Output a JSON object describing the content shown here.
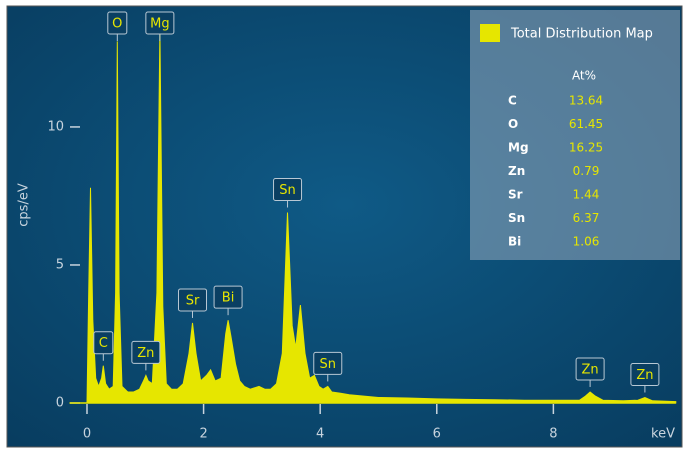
{
  "chart_data": {
    "type": "area",
    "x_label": "keV",
    "y_label": "cps/eV",
    "color": "#e6e600",
    "xlim": [
      -0.3,
      10.1
    ],
    "ylim": [
      0,
      14.2
    ],
    "xticks": [
      0,
      2,
      4,
      6,
      8
    ],
    "yticks": [
      0,
      5,
      10
    ],
    "x": [
      0.0,
      0.03,
      0.06,
      0.1,
      0.15,
      0.2,
      0.25,
      0.28,
      0.32,
      0.38,
      0.45,
      0.49,
      0.52,
      0.55,
      0.6,
      0.7,
      0.8,
      0.9,
      0.97,
      1.01,
      1.05,
      1.12,
      1.2,
      1.25,
      1.3,
      1.36,
      1.45,
      1.55,
      1.65,
      1.75,
      1.81,
      1.87,
      1.95,
      2.05,
      2.12,
      2.2,
      2.3,
      2.38,
      2.42,
      2.47,
      2.55,
      2.62,
      2.7,
      2.8,
      2.95,
      3.05,
      3.15,
      3.25,
      3.35,
      3.44,
      3.52,
      3.58,
      3.66,
      3.74,
      3.82,
      3.9,
      3.98,
      4.05,
      4.13,
      4.2,
      4.35,
      4.5,
      5,
      5.5,
      6,
      6.5,
      7,
      7.5,
      8,
      8.45,
      8.55,
      8.63,
      8.72,
      8.85,
      9.2,
      9.45,
      9.57,
      9.7,
      10.1
    ],
    "values": [
      0,
      4,
      7.8,
      3,
      0.9,
      0.6,
      0.9,
      1.35,
      0.7,
      0.5,
      0.6,
      4,
      13.1,
      4,
      0.6,
      0.4,
      0.4,
      0.5,
      0.8,
      1.0,
      0.8,
      0.7,
      4,
      13.5,
      3.5,
      0.7,
      0.5,
      0.5,
      0.7,
      1.8,
      2.9,
      1.8,
      0.8,
      1.0,
      1.2,
      0.8,
      0.9,
      2.5,
      3.0,
      2.4,
      1.4,
      0.8,
      0.6,
      0.5,
      0.6,
      0.5,
      0.5,
      0.7,
      1.8,
      6.9,
      2.8,
      2.0,
      3.55,
      1.8,
      0.9,
      1.0,
      0.6,
      0.5,
      0.6,
      0.4,
      0.35,
      0.3,
      0.2,
      0.18,
      0.15,
      0.13,
      0.12,
      0.1,
      0.1,
      0.1,
      0.25,
      0.4,
      0.25,
      0.1,
      0.08,
      0.1,
      0.2,
      0.08,
      0.05
    ],
    "annotations": [
      {
        "label": "C",
        "x": 0.28
      },
      {
        "label": "O",
        "x": 0.52
      },
      {
        "label": "Zn",
        "x": 1.01
      },
      {
        "label": "Mg",
        "x": 1.25
      },
      {
        "label": "Sr",
        "x": 1.81
      },
      {
        "label": "Bi",
        "x": 2.42
      },
      {
        "label": "Sn",
        "x": 3.44
      },
      {
        "label": "Sn",
        "x": 4.13
      },
      {
        "label": "Zn",
        "x": 8.63
      },
      {
        "label": "Zn",
        "x": 9.57
      }
    ],
    "legend": "Total Distribution Map",
    "table": {
      "header": "At%",
      "rows": [
        [
          "C",
          13.64
        ],
        [
          "O",
          61.45
        ],
        [
          "Mg",
          16.25
        ],
        [
          "Zn",
          0.79
        ],
        [
          "Sr",
          1.44
        ],
        [
          "Sn",
          6.37
        ],
        [
          "Bi",
          1.06
        ]
      ]
    }
  }
}
